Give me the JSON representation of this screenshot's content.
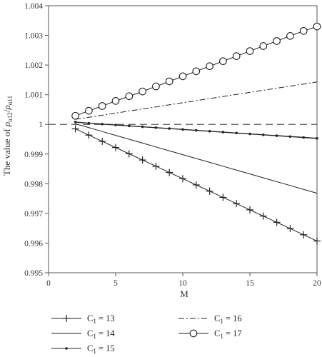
{
  "chart_data": {
    "type": "line",
    "xlabel": "M",
    "ylabel": {
      "base": "The value of ",
      "rho1": "ρ",
      "sub1": "α12",
      "slash": "/",
      "rho2": "ρ",
      "sub2": "α11"
    },
    "xlim": [
      0,
      20
    ],
    "ylim": [
      0.995,
      1.004
    ],
    "xticks": [
      "0",
      "5",
      "10",
      "15",
      "20"
    ],
    "yticks": [
      "0.995",
      "0.996",
      "0.997",
      "0.998",
      "0.999",
      "1",
      "1.001",
      "1.002",
      "1.003",
      "1.004"
    ],
    "x": [
      2,
      3,
      4,
      5,
      6,
      7,
      8,
      9,
      10,
      11,
      12,
      13,
      14,
      15,
      16,
      17,
      18,
      19,
      20
    ],
    "reference_line": {
      "y": 1,
      "style": "dashed"
    },
    "grid": false,
    "legend_position": "bottom",
    "series": [
      {
        "name": "C",
        "sub": "1",
        "rest": " = 13",
        "style": "plus",
        "values": [
          0.99985,
          0.99964,
          0.99943,
          0.99922,
          0.99901,
          0.9988,
          0.99859,
          0.99838,
          0.99817,
          0.99796,
          0.99775,
          0.99754,
          0.99733,
          0.99712,
          0.99691,
          0.9967,
          0.99649,
          0.99628,
          0.99607
        ]
      },
      {
        "name": "C",
        "sub": "1",
        "rest": " = 14",
        "style": "solid",
        "values": [
          1.00002,
          0.99989,
          0.99976,
          0.99963,
          0.9995,
          0.99937,
          0.99924,
          0.99911,
          0.99898,
          0.99885,
          0.99872,
          0.99859,
          0.99846,
          0.99833,
          0.9982,
          0.99807,
          0.99794,
          0.99781,
          0.99768
        ]
      },
      {
        "name": "C",
        "sub": "1",
        "rest": " = 15",
        "style": "dot",
        "values": [
          1.00008,
          1.00004,
          1.00001,
          0.99998,
          0.99995,
          0.99992,
          0.99989,
          0.99986,
          0.99983,
          0.9998,
          0.99977,
          0.99974,
          0.99971,
          0.99968,
          0.99965,
          0.99962,
          0.99959,
          0.99956,
          0.99953
        ]
      },
      {
        "name": "C",
        "sub": "1",
        "rest": " = 16",
        "style": "dashdot",
        "values": [
          1.00017,
          1.00024,
          1.00031,
          1.00038,
          1.00045,
          1.00052,
          1.00059,
          1.00066,
          1.00073,
          1.0008,
          1.00087,
          1.00094,
          1.00101,
          1.00108,
          1.00115,
          1.00122,
          1.00129,
          1.00136,
          1.00143
        ]
      },
      {
        "name": "C",
        "sub": "1",
        "rest": " = 17",
        "style": "circle",
        "values": [
          1.00029,
          1.00046,
          1.00062,
          1.00079,
          1.00095,
          1.00111,
          1.00128,
          1.00145,
          1.00162,
          1.00179,
          1.00196,
          1.00213,
          1.0023,
          1.00247,
          1.00264,
          1.00281,
          1.00298,
          1.00315,
          1.0033
        ]
      }
    ]
  }
}
